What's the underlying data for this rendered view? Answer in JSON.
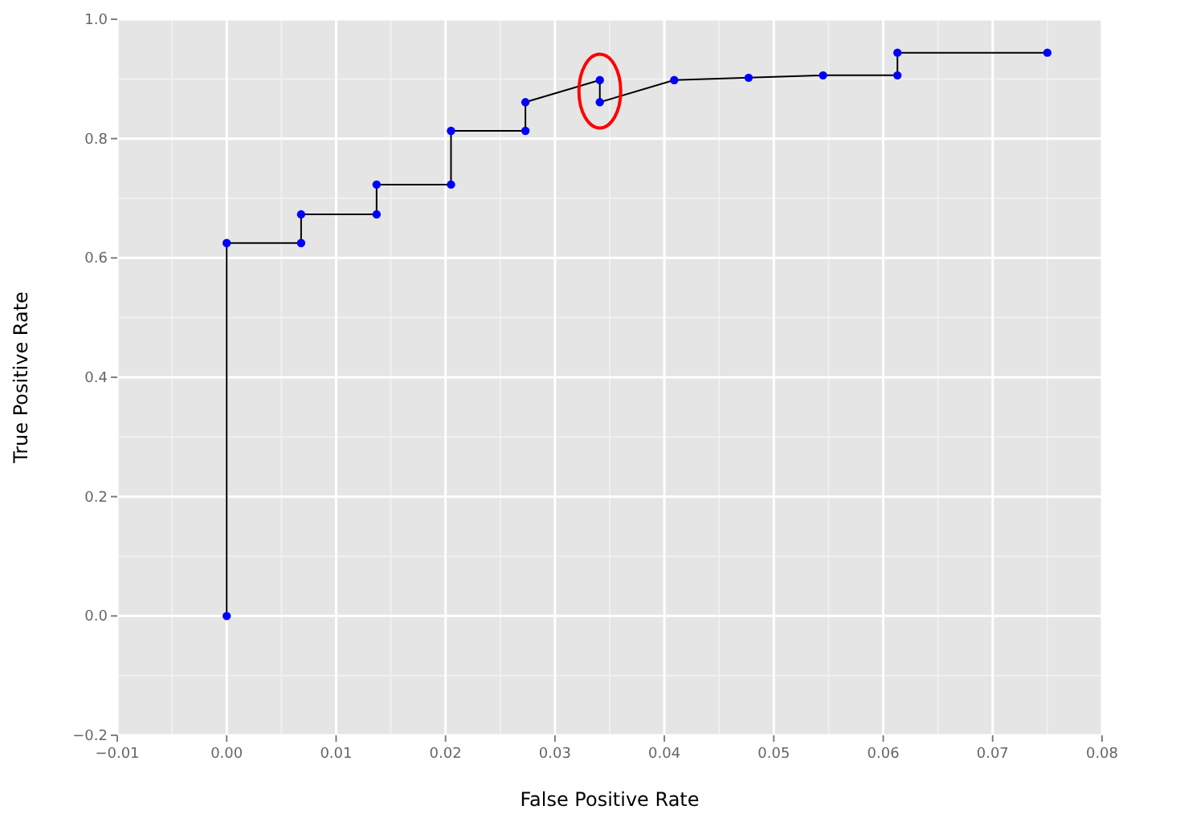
{
  "chart_data": {
    "type": "line",
    "xlabel": "False Positive Rate",
    "ylabel": "True Positive Rate",
    "x": [
      0,
      0,
      0.0068,
      0.0068,
      0.0137,
      0.0137,
      0.0205,
      0.0205,
      0.0273,
      0.0273,
      0.0341,
      0.0341,
      0.0409,
      0.0477,
      0.0545,
      0.0613,
      0.0613,
      0.075
    ],
    "series": [
      {
        "color": "#0000ff",
        "values": [
          0,
          0.625,
          0.625,
          0.673,
          0.673,
          0.723,
          0.723,
          0.813,
          0.813,
          0.861,
          0.898,
          0.861,
          0.898,
          0.902,
          0.906,
          0.906,
          0.944,
          0.944
        ]
      }
    ],
    "xlim": [
      -0.01,
      0.08
    ],
    "xticks": [
      {
        "value": -0.01,
        "label": "−0.01"
      },
      {
        "value": 0,
        "label": "0.00"
      },
      {
        "value": 0.01,
        "label": "0.01"
      },
      {
        "value": 0.02,
        "label": "0.02"
      },
      {
        "value": 0.03,
        "label": "0.03"
      },
      {
        "value": 0.04,
        "label": "0.04"
      },
      {
        "value": 0.05,
        "label": "0.05"
      },
      {
        "value": 0.06,
        "label": "0.06"
      },
      {
        "value": 0.07,
        "label": "0.07"
      },
      {
        "value": 0.08,
        "label": "0.08"
      }
    ],
    "ylim": [
      -0.2,
      1.0
    ],
    "yticks": [
      {
        "value": -0.2,
        "label": "−0.2"
      },
      {
        "value": 0,
        "label": "0.0"
      },
      {
        "value": 0.2,
        "label": "0.2"
      },
      {
        "value": 0.4,
        "label": "0.4"
      },
      {
        "value": 0.6,
        "label": "0.6"
      },
      {
        "value": 0.8,
        "label": "0.8"
      },
      {
        "value": 1.0,
        "label": "1.0"
      }
    ],
    "grid": true,
    "marker": "circle",
    "line_style": "solid"
  }
}
